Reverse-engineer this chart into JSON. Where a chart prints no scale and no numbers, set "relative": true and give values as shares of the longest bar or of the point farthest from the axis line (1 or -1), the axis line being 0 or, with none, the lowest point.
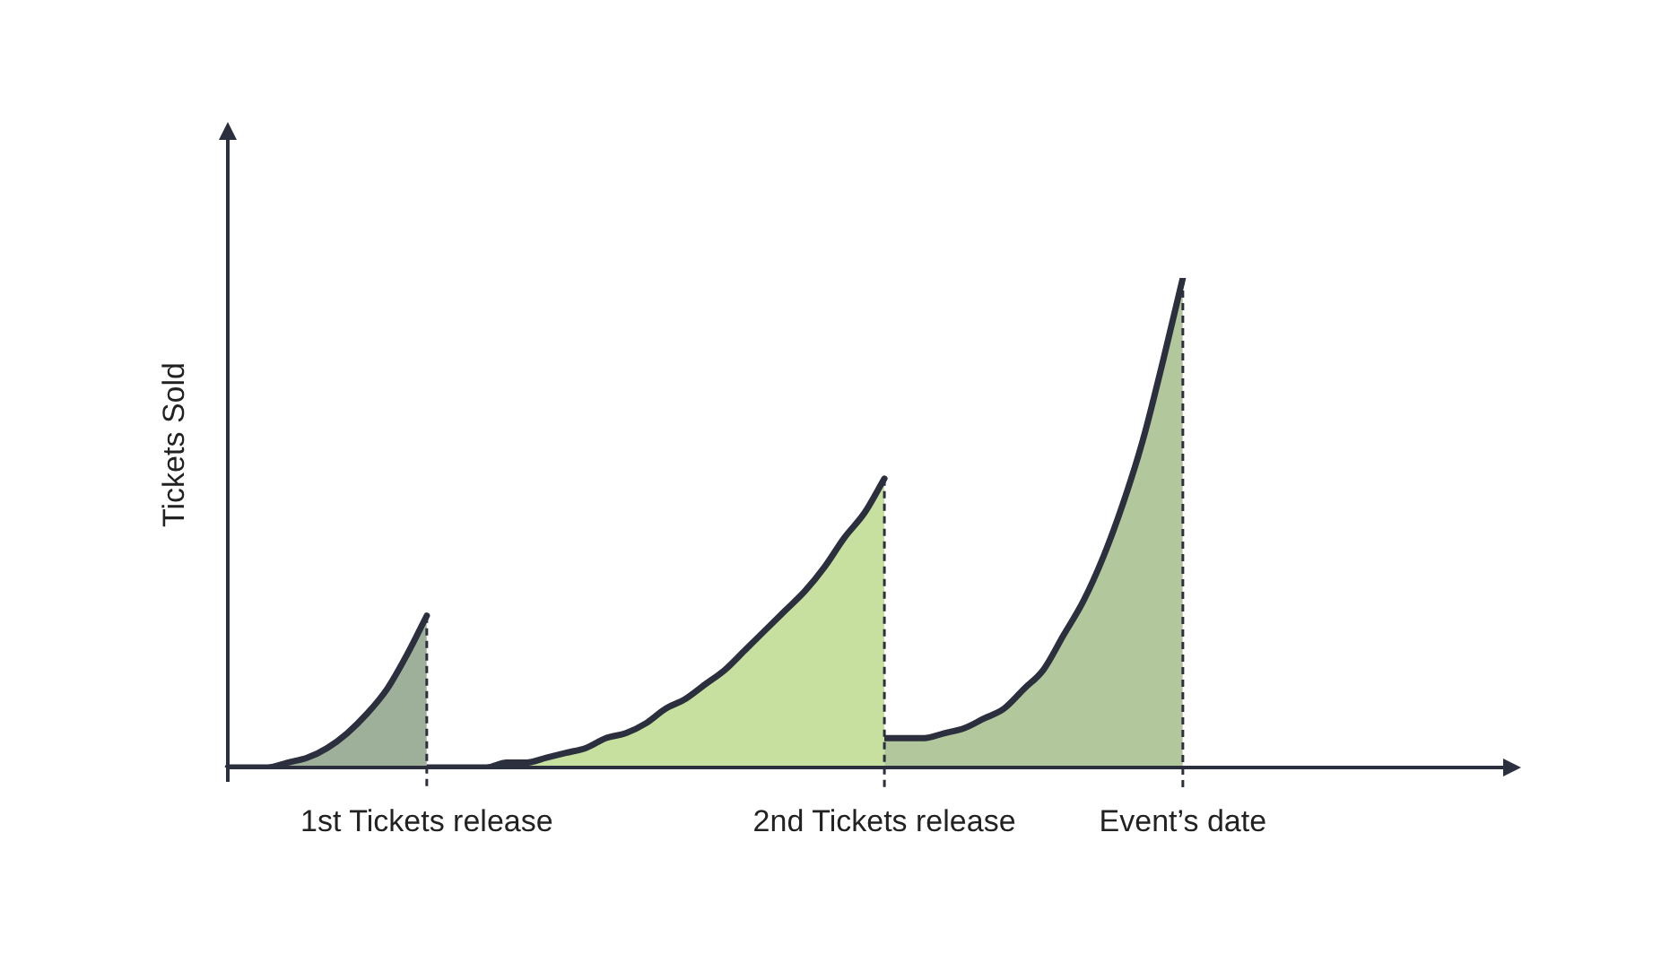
{
  "chart_data": {
    "type": "area",
    "relative": true,
    "ylabel": "Tickets Sold",
    "categories": [
      null,
      null,
      null,
      null,
      null,
      null,
      null,
      null,
      null,
      null,
      "1st Tickets release",
      null,
      null,
      null,
      null,
      null,
      null,
      null,
      null,
      null,
      null,
      null,
      null,
      null,
      null,
      null,
      null,
      null,
      null,
      null,
      null,
      null,
      null,
      "2nd Tickets release",
      null,
      null,
      null,
      null,
      null,
      null,
      null,
      null,
      null,
      null,
      null,
      null,
      null,
      null,
      "Event’s date",
      null,
      null,
      null,
      null,
      null,
      null,
      null,
      null,
      null,
      null,
      null,
      null,
      null,
      null,
      null,
      null,
      null
    ],
    "series": [
      {
        "color": "#9fb09a",
        "values": [
          0,
          0,
          0,
          0.01,
          0.02,
          0.04,
          0.07,
          0.11,
          0.16,
          0.23,
          0.31,
          null,
          null,
          null,
          null,
          null,
          null,
          null,
          null,
          null,
          null,
          null,
          null,
          null,
          null,
          null,
          null,
          null,
          null,
          null,
          null,
          null,
          null,
          null,
          null,
          null,
          null,
          null,
          null,
          null,
          null,
          null,
          null,
          null,
          null,
          null,
          null,
          null,
          null,
          null,
          null,
          null,
          null,
          null,
          null,
          null,
          null,
          null,
          null,
          null,
          null,
          null,
          null,
          null,
          null,
          null
        ]
      },
      {
        "color": "#c8e09f",
        "values": [
          null,
          null,
          null,
          null,
          null,
          null,
          null,
          null,
          null,
          null,
          0,
          0,
          0,
          0,
          0.01,
          0.01,
          0.02,
          0.03,
          0.04,
          0.06,
          0.07,
          0.09,
          0.12,
          0.14,
          0.17,
          0.2,
          0.24,
          0.28,
          0.32,
          0.36,
          0.41,
          0.47,
          0.52,
          0.59,
          null,
          null,
          null,
          null,
          null,
          null,
          null,
          null,
          null,
          null,
          null,
          null,
          null,
          null,
          null,
          null,
          null,
          null,
          null,
          null,
          null,
          null,
          null,
          null,
          null,
          null,
          null,
          null,
          null,
          null,
          null,
          null
        ]
      },
      {
        "color": "#b3c79d",
        "values": [
          null,
          null,
          null,
          null,
          null,
          null,
          null,
          null,
          null,
          null,
          null,
          null,
          null,
          null,
          null,
          null,
          null,
          null,
          null,
          null,
          null,
          null,
          null,
          null,
          null,
          null,
          null,
          null,
          null,
          null,
          null,
          null,
          null,
          0.06,
          0.06,
          0.06,
          0.07,
          0.08,
          0.1,
          0.12,
          0.16,
          0.2,
          0.27,
          0.34,
          0.43,
          0.54,
          0.67,
          0.83,
          1,
          null,
          null,
          null,
          null,
          null,
          null,
          null,
          null,
          null,
          null,
          null,
          null,
          null,
          null,
          null,
          null,
          null
        ]
      }
    ],
    "ref_lines": [
      {
        "axis": "x",
        "value": "1st Tickets release",
        "line_style": "dashed"
      },
      {
        "axis": "x",
        "value": "2nd Tickets release",
        "line_style": "dashed"
      },
      {
        "axis": "x",
        "value": "Event’s date",
        "line_style": "dashed"
      }
    ]
  }
}
